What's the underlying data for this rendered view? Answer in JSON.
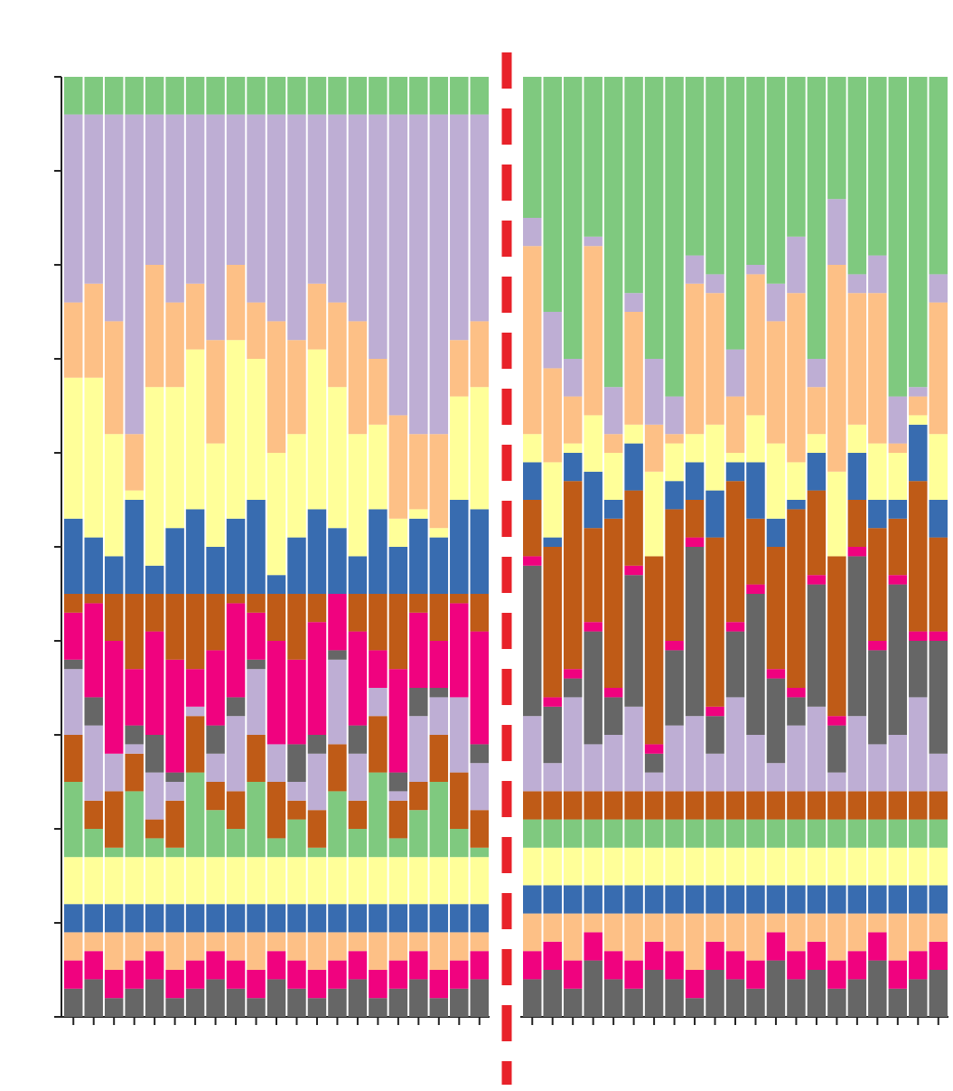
{
  "chart_data": {
    "type": "stacked_bar",
    "categories": [
      null,
      null,
      null,
      null,
      null,
      null,
      null,
      null,
      null,
      null,
      null,
      null,
      null,
      null,
      null,
      null,
      null,
      null,
      null,
      null,
      null,
      null,
      null,
      null,
      null,
      null,
      null,
      null,
      null,
      null,
      null,
      null,
      null,
      null,
      null,
      null,
      null,
      null,
      null,
      null,
      null,
      null
    ],
    "ylim": [
      0,
      100
    ],
    "yticks": [
      0,
      10,
      20,
      30,
      40,
      50,
      60,
      70,
      80,
      90,
      100
    ],
    "grid": false,
    "series": [
      {
        "color": "#666666",
        "values": [
          3,
          4,
          2,
          3,
          4,
          2,
          3,
          4,
          3,
          2,
          4,
          3,
          2,
          3,
          4,
          2,
          3,
          4,
          2,
          3,
          4,
          4,
          5,
          3,
          6,
          4,
          3,
          5,
          4,
          2,
          5,
          4,
          3,
          6,
          4,
          5,
          3,
          4,
          6,
          3,
          4,
          5
        ]
      },
      {
        "color": "#f0027f",
        "values": [
          3,
          3,
          3,
          3,
          3,
          3,
          3,
          3,
          3,
          3,
          3,
          3,
          3,
          3,
          3,
          3,
          3,
          3,
          3,
          3,
          3,
          3,
          3,
          3,
          3,
          3,
          3,
          3,
          3,
          3,
          3,
          3,
          3,
          3,
          3,
          3,
          3,
          3,
          3,
          3,
          3,
          3
        ]
      },
      {
        "color": "#fdc086",
        "values": [
          3,
          2,
          4,
          3,
          2,
          4,
          3,
          2,
          3,
          4,
          2,
          3,
          4,
          3,
          2,
          4,
          3,
          2,
          4,
          3,
          2,
          4,
          3,
          5,
          2,
          4,
          5,
          3,
          4,
          6,
          3,
          4,
          5,
          2,
          4,
          3,
          5,
          4,
          2,
          5,
          4,
          3
        ]
      },
      {
        "color": "#386cb0",
        "values": [
          3,
          3,
          3,
          3,
          3,
          3,
          3,
          3,
          3,
          3,
          3,
          3,
          3,
          3,
          3,
          3,
          3,
          3,
          3,
          3,
          3,
          3,
          3,
          3,
          3,
          3,
          3,
          3,
          3,
          3,
          3,
          3,
          3,
          3,
          3,
          3,
          3,
          3,
          3,
          3,
          3,
          3
        ]
      },
      {
        "color": "#ffff99",
        "values": [
          5,
          5,
          5,
          5,
          5,
          5,
          5,
          5,
          5,
          5,
          5,
          5,
          5,
          5,
          5,
          5,
          5,
          5,
          5,
          5,
          5,
          4,
          4,
          4,
          4,
          4,
          4,
          4,
          4,
          4,
          4,
          4,
          4,
          4,
          4,
          4,
          4,
          4,
          4,
          4,
          4,
          4
        ]
      },
      {
        "color": "#7fc97f",
        "values": [
          8,
          3,
          1,
          7,
          2,
          1,
          9,
          5,
          3,
          8,
          2,
          4,
          1,
          7,
          3,
          9,
          2,
          5,
          8,
          3,
          1,
          3,
          3,
          3,
          3,
          3,
          3,
          3,
          3,
          3,
          3,
          3,
          3,
          3,
          3,
          3,
          3,
          3,
          3,
          3,
          3,
          3
        ]
      },
      {
        "color": "#bf5b17",
        "values": [
          5,
          3,
          6,
          4,
          2,
          5,
          6,
          3,
          4,
          5,
          6,
          2,
          4,
          5,
          3,
          6,
          4,
          3,
          5,
          6,
          4,
          3,
          3,
          3,
          3,
          3,
          3,
          3,
          3,
          3,
          3,
          3,
          3,
          3,
          3,
          3,
          3,
          3,
          3,
          3,
          3,
          3
        ]
      },
      {
        "color": "#beaed4",
        "values": [
          7,
          8,
          4,
          1,
          5,
          2,
          1,
          3,
          8,
          7,
          4,
          2,
          6,
          9,
          5,
          3,
          1,
          7,
          4,
          8,
          5,
          8,
          3,
          10,
          5,
          6,
          9,
          2,
          7,
          8,
          4,
          10,
          6,
          3,
          7,
          9,
          2,
          8,
          5,
          6,
          10,
          4
        ]
      },
      {
        "color": "#666666",
        "values": [
          1,
          3,
          0,
          2,
          4,
          1,
          0,
          3,
          2,
          1,
          0,
          4,
          2,
          1,
          3,
          0,
          2,
          3,
          1,
          0,
          2,
          16,
          6,
          2,
          12,
          4,
          14,
          2,
          8,
          18,
          4,
          7,
          15,
          9,
          3,
          13,
          5,
          17,
          10,
          16,
          6,
          12
        ]
      },
      {
        "color": "#f0027f",
        "values": [
          5,
          10,
          12,
          6,
          11,
          12,
          4,
          8,
          10,
          5,
          11,
          9,
          12,
          6,
          10,
          4,
          11,
          8,
          5,
          10,
          12,
          1,
          1,
          1,
          1,
          1,
          1,
          1,
          1,
          1,
          1,
          1,
          1,
          1,
          1,
          1,
          1,
          1,
          1,
          1,
          1,
          1
        ]
      },
      {
        "color": "#bf5b17",
        "values": [
          2,
          1,
          5,
          8,
          4,
          7,
          8,
          6,
          1,
          2,
          5,
          7,
          3,
          0,
          4,
          6,
          8,
          2,
          5,
          1,
          4,
          6,
          16,
          20,
          10,
          18,
          8,
          20,
          14,
          4,
          18,
          15,
          7,
          13,
          19,
          9,
          17,
          5,
          12,
          6,
          16,
          10
        ]
      },
      {
        "color": "#386cb0",
        "values": [
          8,
          6,
          4,
          10,
          3,
          7,
          9,
          5,
          8,
          10,
          2,
          6,
          9,
          7,
          4,
          9,
          5,
          8,
          6,
          10,
          9,
          4,
          1,
          3,
          6,
          2,
          5,
          0,
          3,
          4,
          5,
          2,
          6,
          3,
          1,
          4,
          0,
          5,
          3,
          2,
          6,
          4
        ]
      },
      {
        "color": "#ffff99",
        "values": [
          15,
          17,
          13,
          1,
          19,
          15,
          17,
          11,
          19,
          15,
          13,
          11,
          17,
          15,
          13,
          9,
          3,
          1,
          1,
          11,
          13,
          3,
          8,
          1,
          6,
          5,
          2,
          9,
          4,
          3,
          7,
          1,
          5,
          8,
          4,
          2,
          9,
          3,
          6,
          5,
          1,
          7
        ]
      },
      {
        "color": "#fdc086",
        "values": [
          8,
          10,
          12,
          6,
          13,
          9,
          7,
          11,
          8,
          6,
          14,
          10,
          7,
          9,
          12,
          7,
          11,
          8,
          10,
          6,
          7,
          20,
          10,
          5,
          18,
          2,
          12,
          5,
          1,
          16,
          14,
          6,
          15,
          13,
          18,
          5,
          22,
          14,
          16,
          1,
          2,
          14
        ]
      },
      {
        "color": "#beaed4",
        "values": [
          20,
          18,
          22,
          34,
          16,
          20,
          18,
          24,
          16,
          20,
          22,
          24,
          18,
          20,
          22,
          26,
          32,
          34,
          34,
          24,
          22,
          3,
          6,
          4,
          1,
          5,
          2,
          7,
          4,
          3,
          2,
          5,
          1,
          4,
          6,
          3,
          7,
          2,
          4,
          5,
          1,
          3
        ]
      },
      {
        "color": "#7fc97f",
        "values": [
          4,
          4,
          4,
          4,
          4,
          4,
          4,
          4,
          4,
          4,
          4,
          4,
          4,
          4,
          4,
          4,
          4,
          4,
          4,
          4,
          4,
          15,
          25,
          30,
          17,
          33,
          23,
          30,
          34,
          19,
          21,
          29,
          20,
          22,
          17,
          30,
          13,
          21,
          19,
          34,
          33,
          21
        ]
      }
    ]
  }
}
